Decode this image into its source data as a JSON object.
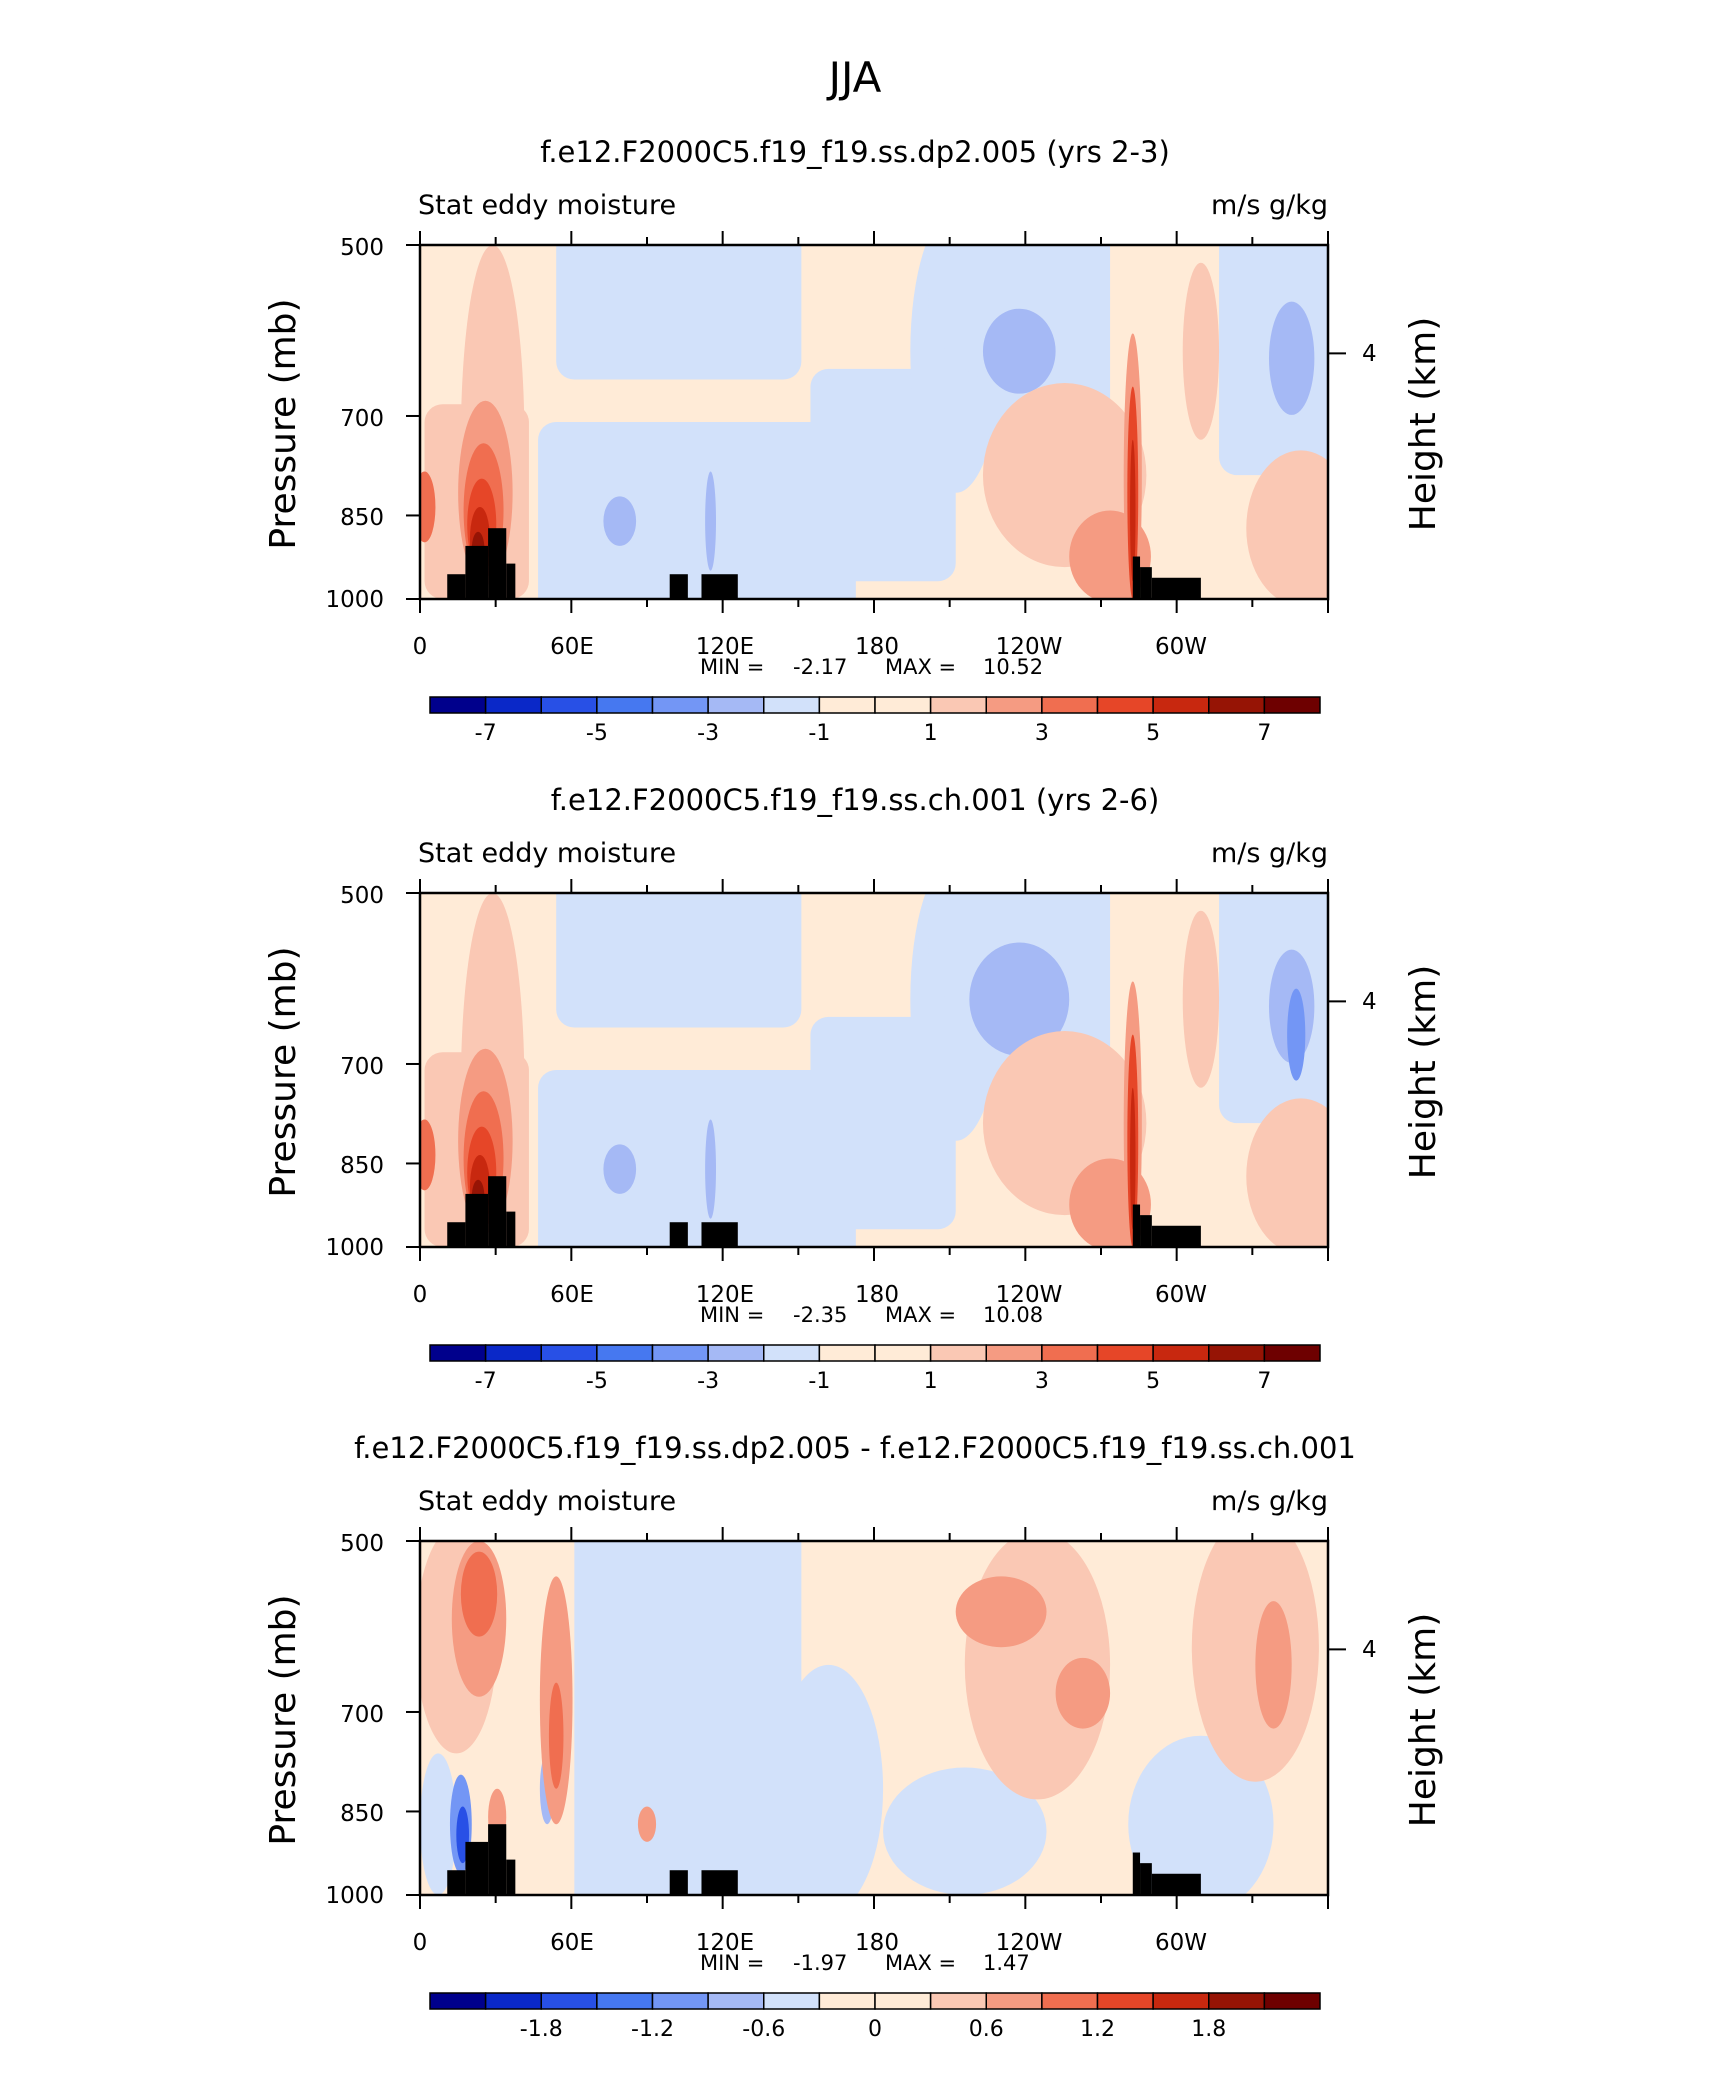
{
  "figure": {
    "title": "JJA"
  },
  "chart_data": [
    {
      "type": "heatmap",
      "title": "f.e12.F2000C5.f19_f19.ss.dp2.005 (yrs 2-3)",
      "left_label": "Stat eddy moisture",
      "right_label": "m/s g/kg",
      "ylabel": "Pressure (mb)",
      "ylabel2": "Height (km)",
      "yticks": [
        "500",
        "700",
        "850",
        "1000"
      ],
      "yticks2": [
        "4"
      ],
      "xticks": [
        "0",
        "60E",
        "120E",
        "180",
        "120W",
        "60W"
      ],
      "stats": {
        "min_label": "MIN =",
        "min": "-2.17",
        "max_label": "MAX =",
        "max": "10.52"
      },
      "colorbar": {
        "labels": [
          "-7",
          "-5",
          "-3",
          "-1",
          "1",
          "3",
          "5",
          "7"
        ]
      }
    },
    {
      "type": "heatmap",
      "title": "f.e12.F2000C5.f19_f19.ss.ch.001 (yrs 2-6)",
      "left_label": "Stat eddy moisture",
      "right_label": "m/s g/kg",
      "ylabel": "Pressure (mb)",
      "ylabel2": "Height (km)",
      "yticks": [
        "500",
        "700",
        "850",
        "1000"
      ],
      "yticks2": [
        "4"
      ],
      "xticks": [
        "0",
        "60E",
        "120E",
        "180",
        "120W",
        "60W"
      ],
      "stats": {
        "min_label": "MIN =",
        "min": "-2.35",
        "max_label": "MAX =",
        "max": "10.08"
      },
      "colorbar": {
        "labels": [
          "-7",
          "-5",
          "-3",
          "-1",
          "1",
          "3",
          "5",
          "7"
        ]
      }
    },
    {
      "type": "heatmap",
      "title": "f.e12.F2000C5.f19_f19.ss.dp2.005 - f.e12.F2000C5.f19_f19.ss.ch.001",
      "left_label": "Stat eddy moisture",
      "right_label": "m/s g/kg",
      "ylabel": "Pressure (mb)",
      "ylabel2": "Height (km)",
      "yticks": [
        "500",
        "700",
        "850",
        "1000"
      ],
      "yticks2": [
        "4"
      ],
      "xticks": [
        "0",
        "60E",
        "120E",
        "180",
        "120W",
        "60W"
      ],
      "stats": {
        "min_label": "MIN =",
        "min": "-1.97",
        "max_label": "MAX =",
        "max": "1.47"
      },
      "colorbar": {
        "labels": [
          "-1.8",
          "-1.2",
          "-0.6",
          "0",
          "0.6",
          "1.2",
          "1.8"
        ]
      }
    }
  ],
  "colors": [
    "#00008c",
    "#0a28c8",
    "#2850e6",
    "#4678f0",
    "#7396f5",
    "#a5b9f5",
    "#d2e1fa",
    "#ffebd7",
    "#fac8b4",
    "#f59b82",
    "#f06e50",
    "#e64628",
    "#c8280f",
    "#961405",
    "#6e0000"
  ]
}
